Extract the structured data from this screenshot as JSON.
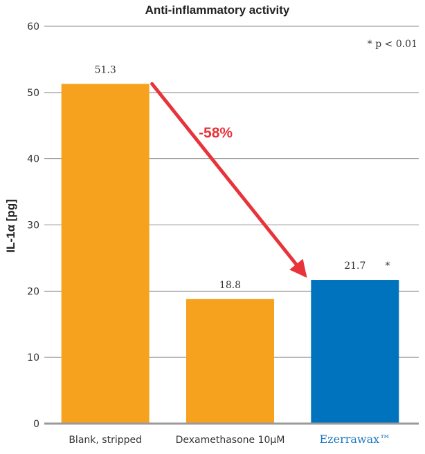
{
  "chart_data": {
    "type": "bar",
    "title": "Anti-inflammatory activity",
    "ylabel": "IL-1α [pg]",
    "xlabel": "",
    "ylim": [
      0,
      60
    ],
    "yticks": [
      0,
      10,
      20,
      30,
      40,
      50,
      60
    ],
    "categories": [
      "Blank, stripped",
      "Dexamethasone 10µM",
      "Ezerrawax™"
    ],
    "values": [
      51.3,
      18.8,
      21.7
    ],
    "value_labels": [
      "51.3",
      "18.8",
      "21.7"
    ],
    "bar_colors": [
      "#f7a21e",
      "#f7a21e",
      "#0073be"
    ],
    "significance": {
      "bar_index": 2,
      "marker": "*"
    },
    "annotation": {
      "text": "-58%",
      "from_index": 0,
      "to_index": 2,
      "color": "#e8333a"
    },
    "note": "* p < 0.01",
    "grid": true,
    "grid_axis": "y"
  }
}
